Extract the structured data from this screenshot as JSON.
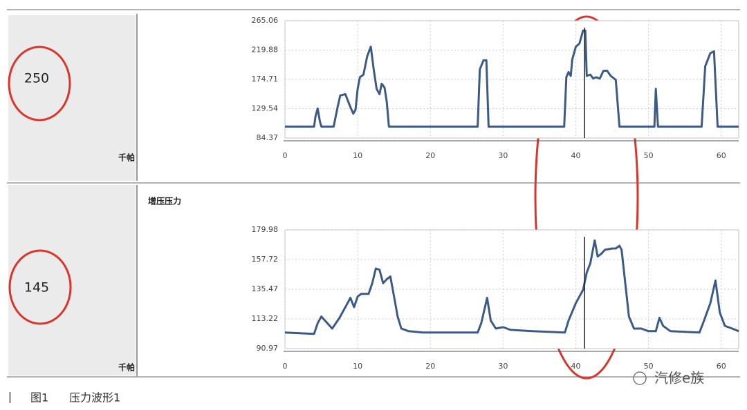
{
  "chart_data": [
    {
      "type": "line",
      "readout": 250,
      "unit": "千帕",
      "xlim": [
        0,
        62.4
      ],
      "xticks": [
        0,
        10,
        20,
        30,
        40,
        50,
        60
      ],
      "ylim": [
        84.37,
        265.06
      ],
      "yticks": [
        84.37,
        129.54,
        174.71,
        219.88,
        265.06
      ],
      "grid": true,
      "cursor": 41.2,
      "x": [
        0,
        4.0,
        4.2,
        4.5,
        4.8,
        5.0,
        6.7,
        7.2,
        7.6,
        8.3,
        9.0,
        9.4,
        9.7,
        10.0,
        10.3,
        10.8,
        11.3,
        11.8,
        12.2,
        12.6,
        13.0,
        13.3,
        13.7,
        14.0,
        14.3,
        26.5,
        26.8,
        27.3,
        27.7,
        28.0,
        38.4,
        38.7,
        39.0,
        39.3,
        39.5,
        40.0,
        40.5,
        41.0,
        41.3,
        41.5,
        42.0,
        42.4,
        42.8,
        43.3,
        43.8,
        44.3,
        44.8,
        45.5,
        46.0,
        50.8,
        51.0,
        51.3,
        57.3,
        57.8,
        58.5,
        59.0,
        59.5,
        62.4
      ],
      "series": [
        {
          "color": "#3b5a86",
          "values": [
            102,
            102,
            118,
            130,
            110,
            102,
            102,
            130,
            150,
            152,
            132,
            122,
            128,
            160,
            178,
            182,
            210,
            225,
            190,
            160,
            152,
            168,
            162,
            140,
            102,
            102,
            190,
            204,
            204,
            102,
            102,
            178,
            186,
            180,
            205,
            225,
            230,
            250,
            250,
            180,
            182,
            176,
            178,
            176,
            188,
            188,
            180,
            174,
            102,
            102,
            160,
            102,
            102,
            195,
            215,
            218,
            102,
            102
          ]
        }
      ]
    },
    {
      "type": "line",
      "title": "增压压力",
      "readout": 145,
      "unit": "千帕",
      "xlim": [
        0,
        62.4
      ],
      "xticks": [
        0,
        10,
        20,
        30,
        40,
        50,
        60
      ],
      "ylim": [
        90.97,
        179.98
      ],
      "yticks": [
        90.97,
        113.22,
        135.47,
        157.72,
        179.98
      ],
      "grid": true,
      "cursor": 41.2,
      "x": [
        0,
        4.0,
        4.5,
        5.0,
        5.5,
        6.5,
        7.5,
        8.5,
        9.0,
        9.5,
        10.0,
        10.5,
        11.5,
        12.0,
        12.5,
        13.0,
        13.5,
        14.0,
        14.5,
        15.0,
        15.5,
        16.0,
        17.0,
        19.0,
        26.5,
        27.0,
        27.8,
        28.3,
        29.0,
        30.0,
        31.0,
        34.0,
        38.5,
        39.0,
        40.0,
        41.0,
        41.5,
        42.0,
        42.6,
        43.0,
        43.5,
        44.0,
        45.0,
        45.5,
        46.0,
        46.3,
        46.8,
        47.3,
        48.0,
        49.0,
        50.0,
        51.0,
        51.5,
        52.0,
        53.0,
        57.0,
        57.5,
        58.5,
        59.2,
        59.8,
        60.5,
        61.5,
        62.4
      ],
      "series": [
        {
          "color": "#3b5a86",
          "values": [
            103,
            102,
            110,
            115,
            112,
            106,
            114,
            124,
            129,
            122,
            130,
            132,
            132,
            140,
            151,
            150,
            140,
            143,
            145,
            130,
            115,
            106,
            104,
            103,
            103,
            110,
            129,
            112,
            106,
            107,
            105,
            104,
            103,
            112,
            125,
            135,
            148,
            155,
            172,
            160,
            162,
            165,
            166,
            166,
            168,
            165,
            140,
            115,
            106,
            106,
            104,
            104,
            114,
            108,
            104,
            103,
            110,
            125,
            142,
            118,
            108,
            106,
            104
          ]
        }
      ]
    }
  ],
  "caption": {
    "figure": "图1",
    "title": "压力波形1"
  },
  "watermark": "汽修e族"
}
